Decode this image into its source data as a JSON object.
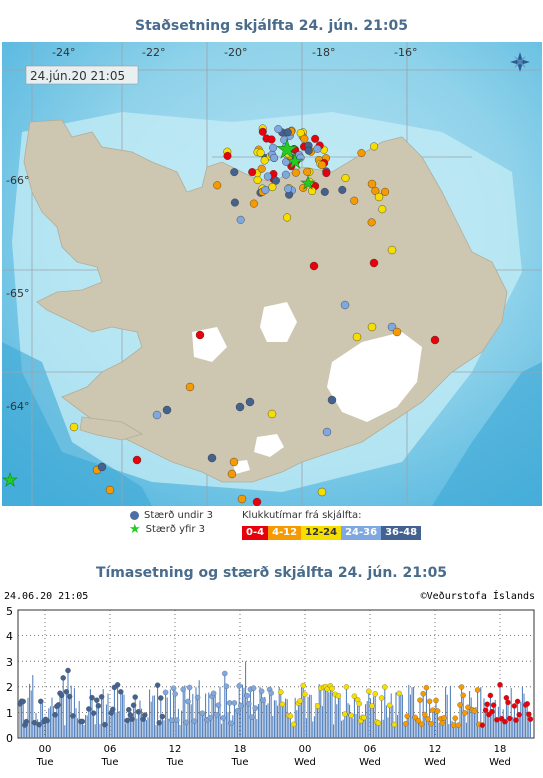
{
  "map": {
    "title": "Staðsetning skjálfta   24. jún. 21:05",
    "timestamp_box": "24.jún.20  21:05",
    "lon_labels": [
      "-24°",
      "-22°",
      "-20°",
      "-18°",
      "-16°"
    ],
    "lat_labels": [
      "-66°",
      "-65°",
      "-64°"
    ],
    "compass_icon": "compass-icon"
  },
  "legend": {
    "small_label": "Stærð undir 3",
    "large_label": "Stærð yfir 3",
    "clock_label": "Klukkutímar frá skjálfta:",
    "bins": [
      {
        "label": "0-4",
        "color": "#e8000b"
      },
      {
        "label": "4-12",
        "color": "#f59a00"
      },
      {
        "label": "12-24",
        "color": "#f5de00"
      },
      {
        "label": "24-36",
        "color": "#7fa8e0"
      },
      {
        "label": "36-48",
        "color": "#44628f"
      }
    ],
    "small_color": "#4f6ea8",
    "large_color": "#22cc22"
  },
  "timeseries": {
    "title": "Tímasetning og stærð skjálfta   24. jún. 21:05",
    "left_text": "24.06.20 21:05",
    "right_text": "©Veðurstofa Íslands",
    "y_ticks": [
      "0",
      "1",
      "2",
      "3",
      "4",
      "5"
    ],
    "x_ticks": [
      {
        "hour": "00",
        "day": "Tue"
      },
      {
        "hour": "06",
        "day": "Tue"
      },
      {
        "hour": "12",
        "day": "Tue"
      },
      {
        "hour": "18",
        "day": "Tue"
      },
      {
        "hour": "00",
        "day": "Wed"
      },
      {
        "hour": "06",
        "day": "Wed"
      },
      {
        "hour": "12",
        "day": "Wed"
      },
      {
        "hour": "18",
        "day": "Wed"
      }
    ]
  }
}
